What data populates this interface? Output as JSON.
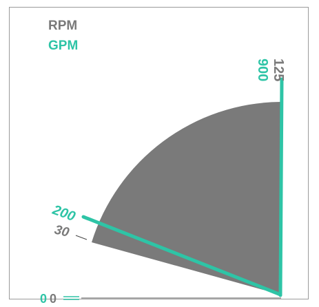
{
  "gauge": {
    "legend": {
      "rpm": "RPM",
      "gpm": "GPM"
    },
    "rpm_scale": {
      "min": "0",
      "low": "30",
      "max": "125"
    },
    "gpm_scale": {
      "min": "0",
      "low": "200",
      "max": "900"
    },
    "colors": {
      "rpm": "#7a7a7a",
      "gpm": "#2ec4a6",
      "frame": "#9a9a9a"
    }
  }
}
